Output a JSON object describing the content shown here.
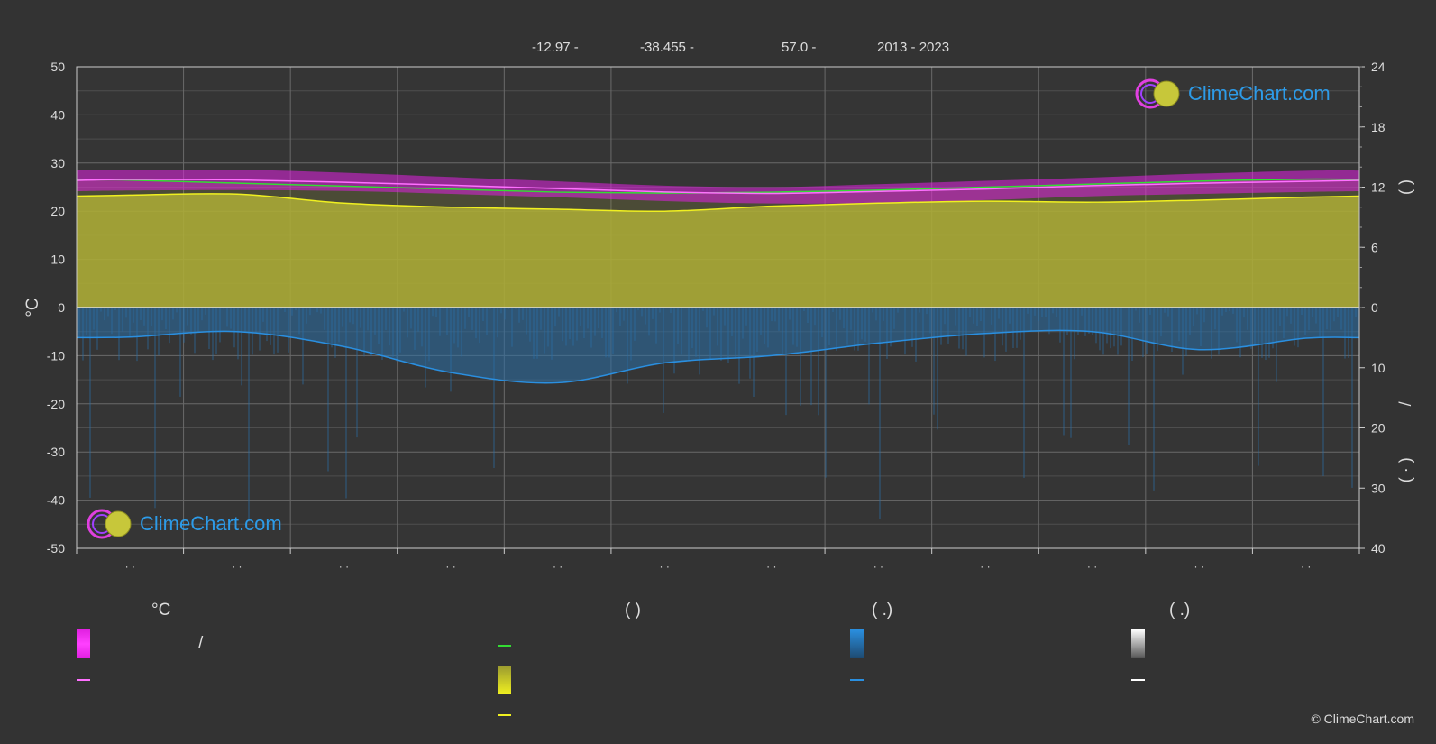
{
  "header": {
    "lat": "-12.97 -",
    "lon": "-38.455 -",
    "elev": "57.0 -",
    "years": "2013 - 2023"
  },
  "brand": {
    "logo_text": "ClimeChart.com",
    "copyright": "© ClimeChart.com"
  },
  "colors": {
    "background": "#333333",
    "temp_band": "#e020e0",
    "temp_mean": "#ff70ff",
    "daylight_line": "#33dd33",
    "sunshine_fill": "#b9b935",
    "sunshine_line": "#f0f020",
    "rain_fill": "#2a6fa8",
    "rain_line": "#2a8fe0",
    "snow_line": "#ffffff",
    "logo_blue": "#2d9be8"
  },
  "legend": {
    "col1_header": "°C",
    "col1_band_label": "/",
    "col2_header": "(           )",
    "col3_header": "(   .)",
    "col4_header": "(   .)"
  },
  "chart_data": {
    "type": "area",
    "x_ticks": [
      "· ·",
      "· ·",
      "· ·",
      "· ·",
      "· ·",
      "· ·",
      "· ·",
      "· ·",
      "· ·",
      "· ·",
      "· ·",
      "· ·"
    ],
    "left_axis": {
      "label": "°C",
      "ylim": [
        -50,
        50
      ],
      "ticks": [
        50,
        40,
        30,
        20,
        10,
        0,
        -10,
        -20,
        -30,
        -40,
        -50
      ]
    },
    "right_axis_top": {
      "ylim": [
        0,
        24
      ],
      "ticks": [
        24,
        18,
        12,
        6,
        0
      ],
      "label": "(    )"
    },
    "right_axis_bottom": {
      "ylim": [
        0,
        40
      ],
      "ticks": [
        0,
        10,
        20,
        30,
        40
      ],
      "label": "/",
      "label2": "( ·   )"
    },
    "months": 12,
    "series": [
      {
        "key": "temp_max",
        "values": [
          28.5,
          28.6,
          28.0,
          27.1,
          26.2,
          25.3,
          25.0,
          25.6,
          26.3,
          27.0,
          27.8,
          28.4
        ]
      },
      {
        "key": "temp_min",
        "values": [
          24.3,
          24.4,
          24.2,
          23.6,
          22.9,
          22.1,
          21.6,
          21.7,
          22.3,
          23.1,
          23.6,
          24.0
        ]
      },
      {
        "key": "temp_mean",
        "values": [
          26.6,
          26.5,
          26.0,
          25.4,
          24.7,
          24.0,
          23.7,
          24.1,
          24.6,
          25.3,
          25.8,
          26.2
        ]
      },
      {
        "key": "daylight",
        "values": [
          12.7,
          12.4,
          12.1,
          11.8,
          11.5,
          11.4,
          11.5,
          11.7,
          12.0,
          12.3,
          12.6,
          12.8
        ]
      },
      {
        "key": "sunshine",
        "values": [
          11.2,
          11.3,
          10.4,
          10.0,
          9.8,
          9.6,
          10.1,
          10.4,
          10.6,
          10.5,
          10.7,
          11.0
        ]
      },
      {
        "key": "rain",
        "values": [
          4.9,
          4.0,
          6.5,
          10.8,
          12.5,
          9.2,
          8.0,
          5.9,
          4.3,
          4.0,
          7.0,
          5.1
        ]
      }
    ]
  }
}
